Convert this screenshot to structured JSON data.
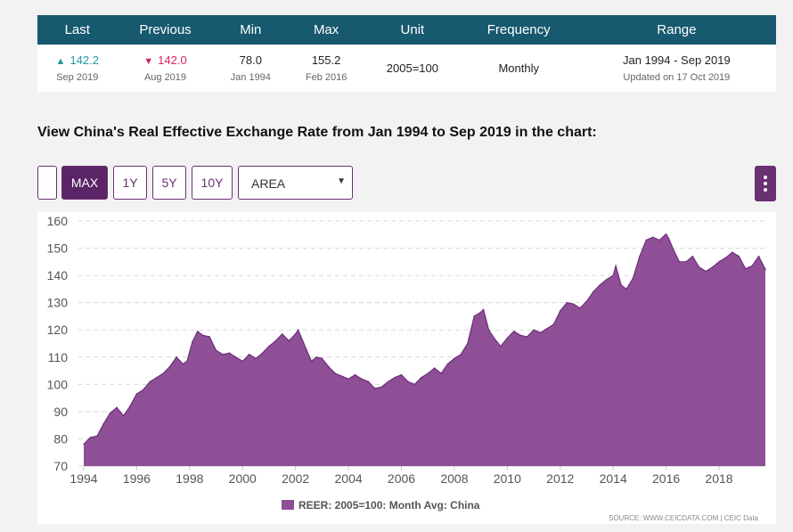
{
  "summary": {
    "headers": [
      "Last",
      "Previous",
      "Min",
      "Max",
      "Unit",
      "Frequency",
      "Range"
    ],
    "last": {
      "value": "142.2",
      "date": "Sep 2019"
    },
    "previous": {
      "value": "142.0",
      "date": "Aug 2019"
    },
    "min": {
      "value": "78.0",
      "date": "Jan 1994"
    },
    "max": {
      "value": "155.2",
      "date": "Feb 2016"
    },
    "unit": "2005=100",
    "frequency": "Monthly",
    "range": {
      "value": "Jan 1994 - Sep 2019",
      "updated": "Updated on 17 Oct 2019"
    }
  },
  "heading": "View China's Real Effective Exchange Rate from Jan 1994 to Sep 2019 in the chart:",
  "controls": {
    "ranges": [
      "MAX",
      "1Y",
      "5Y",
      "10Y"
    ],
    "active_range": "MAX",
    "chart_type": "AREA"
  },
  "colors": {
    "series": "#8e4f97",
    "series_line": "#6e2f7b",
    "header": "#17596e",
    "up": "#1f9aa0",
    "down": "#d6245a"
  },
  "icons": {
    "menu": "kebab-menu-icon",
    "dropdown": "caret-down-icon",
    "up": "triangle-up-icon",
    "down": "triangle-down-icon"
  },
  "chart_data": {
    "type": "area",
    "title": "",
    "xlabel": "",
    "ylabel": "",
    "ylim": [
      70,
      160
    ],
    "xlim": [
      1994,
      2019.75
    ],
    "yticks": [
      70,
      80,
      90,
      100,
      110,
      120,
      130,
      140,
      150,
      160
    ],
    "xticks": [
      "1994",
      "1996",
      "1998",
      "2000",
      "2002",
      "2004",
      "2006",
      "2008",
      "2010",
      "2012",
      "2014",
      "2016",
      "2018"
    ],
    "grid": "horizontal dashed",
    "legend_position": "bottom-center",
    "series": [
      {
        "name": "REER: 2005=100: Month Avg: China",
        "x": [
          1994.0,
          1994.25,
          1994.5,
          1994.75,
          1995.0,
          1995.25,
          1995.5,
          1995.75,
          1996.0,
          1996.25,
          1996.5,
          1996.75,
          1997.0,
          1997.25,
          1997.5,
          1997.75,
          1997.9,
          1998.1,
          1998.3,
          1998.5,
          1998.75,
          1999.0,
          1999.25,
          1999.5,
          1999.75,
          2000.0,
          2000.25,
          2000.5,
          2000.75,
          2001.0,
          2001.25,
          2001.5,
          2001.75,
          2002.0,
          2002.1,
          2002.4,
          2002.6,
          2002.8,
          2003.0,
          2003.25,
          2003.5,
          2003.75,
          2004.0,
          2004.25,
          2004.5,
          2004.75,
          2005.0,
          2005.25,
          2005.5,
          2005.75,
          2006.0,
          2006.25,
          2006.5,
          2006.75,
          2007.0,
          2007.25,
          2007.5,
          2007.75,
          2008.0,
          2008.25,
          2008.5,
          2008.75,
          2009.0,
          2009.1,
          2009.3,
          2009.5,
          2009.75,
          2010.0,
          2010.25,
          2010.5,
          2010.75,
          2011.0,
          2011.25,
          2011.5,
          2011.75,
          2012.0,
          2012.25,
          2012.5,
          2012.75,
          2013.0,
          2013.25,
          2013.5,
          2013.75,
          2014.0,
          2014.1,
          2014.3,
          2014.5,
          2014.75,
          2015.0,
          2015.25,
          2015.5,
          2015.75,
          2016.0,
          2016.1,
          2016.3,
          2016.5,
          2016.75,
          2017.0,
          2017.25,
          2017.5,
          2017.75,
          2018.0,
          2018.25,
          2018.5,
          2018.75,
          2019.0,
          2019.25,
          2019.5,
          2019.75
        ],
        "values": [
          78.0,
          80.5,
          81.0,
          85.5,
          89.5,
          91.5,
          88.5,
          92.0,
          96.5,
          98.0,
          101.0,
          102.5,
          104.0,
          106.5,
          110.0,
          107.5,
          108.5,
          115.5,
          119.5,
          118.0,
          117.5,
          112.5,
          111.0,
          111.5,
          110.0,
          108.5,
          111.0,
          109.5,
          111.5,
          114.0,
          116.0,
          118.5,
          116.0,
          118.5,
          120.0,
          113.0,
          108.5,
          110.0,
          109.5,
          106.5,
          104.0,
          103.0,
          102.0,
          103.5,
          102.0,
          101.0,
          98.5,
          99.0,
          101.0,
          102.5,
          103.5,
          101.0,
          100.0,
          102.5,
          104.0,
          106.0,
          104.0,
          107.5,
          109.5,
          111.0,
          115.0,
          125.0,
          126.5,
          127.5,
          120.0,
          117.0,
          114.0,
          117.0,
          119.5,
          118.0,
          117.5,
          120.0,
          119.0,
          120.5,
          122.0,
          127.0,
          130.0,
          129.5,
          128.0,
          130.5,
          134.0,
          136.5,
          138.5,
          140.0,
          143.5,
          136.5,
          135.0,
          139.0,
          147.0,
          153.0,
          154.0,
          153.0,
          155.2,
          153.5,
          149.0,
          145.0,
          145.0,
          147.0,
          143.0,
          141.5,
          143.0,
          145.0,
          146.5,
          148.5,
          147.0,
          142.5,
          143.5,
          147.0,
          142.2
        ]
      }
    ],
    "source": "SOURCE: WWW.CEICDATA.COM | CEIC Data"
  }
}
